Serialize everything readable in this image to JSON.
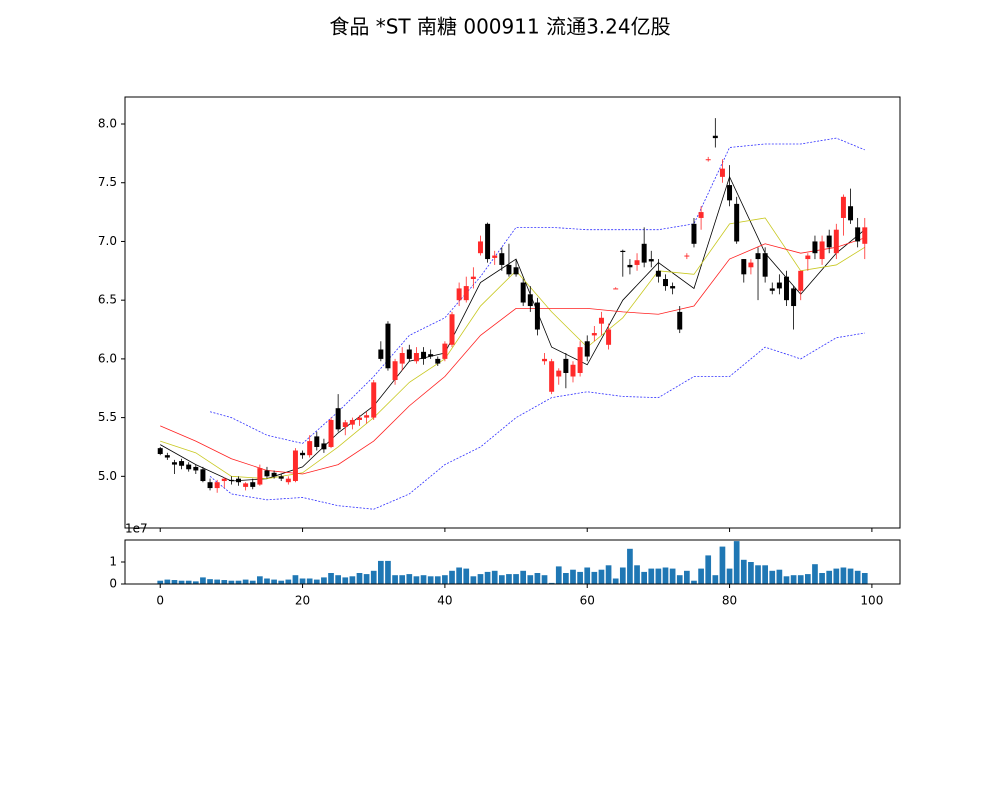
{
  "chart_data": {
    "type": "candlestick",
    "title": "食品 *ST 南糖 000911 流通3.24亿股",
    "xlim": [
      -4.95,
      103.95
    ],
    "xticks": [
      0,
      20,
      40,
      60,
      80,
      100
    ],
    "ylim": [
      4.56,
      8.23
    ],
    "yticks": [
      {
        "value": 5,
        "label": "5.0"
      },
      5.5,
      {
        "value": 6,
        "label": "6.0"
      },
      6.5,
      {
        "value": 7,
        "label": "7.0"
      },
      7.5,
      {
        "value": 8,
        "label": "8.0"
      }
    ],
    "up_color": "#ff2a2a",
    "down_color": "#000000",
    "candles": [
      [
        5.24,
        5.25,
        5.18,
        5.19
      ],
      [
        5.18,
        5.2,
        5.14,
        5.16
      ],
      [
        5.12,
        5.14,
        5.02,
        5.1
      ],
      [
        5.13,
        5.15,
        5.06,
        5.09
      ],
      [
        5.1,
        5.12,
        5.04,
        5.06
      ],
      [
        5.08,
        5.1,
        5.02,
        5.05
      ],
      [
        5.06,
        5.08,
        4.95,
        4.96
      ],
      [
        4.95,
        4.98,
        4.88,
        4.9
      ],
      [
        4.9,
        4.97,
        4.86,
        4.95
      ],
      [
        4.96,
        4.99,
        4.9,
        4.98
      ],
      [
        4.97,
        5.0,
        4.93,
        4.96
      ],
      [
        4.98,
        5.0,
        4.92,
        4.95
      ],
      [
        4.91,
        4.95,
        4.88,
        4.94
      ],
      [
        4.95,
        4.98,
        4.89,
        4.91
      ],
      [
        4.93,
        5.1,
        4.92,
        5.07
      ],
      [
        5.05,
        5.08,
        4.98,
        5.0
      ],
      [
        5.03,
        5.05,
        4.98,
        5.0
      ],
      [
        5.0,
        5.02,
        4.96,
        4.98
      ],
      [
        4.95,
        5.0,
        4.93,
        4.98
      ],
      [
        4.96,
        5.24,
        4.95,
        5.22
      ],
      [
        5.2,
        5.22,
        5.15,
        5.18
      ],
      [
        5.18,
        5.35,
        5.16,
        5.3
      ],
      [
        5.34,
        5.38,
        5.22,
        5.25
      ],
      [
        5.28,
        5.32,
        5.2,
        5.23
      ],
      [
        5.25,
        5.5,
        5.24,
        5.48
      ],
      [
        5.58,
        5.7,
        5.38,
        5.4
      ],
      [
        5.42,
        5.48,
        5.35,
        5.46
      ],
      [
        5.44,
        5.5,
        5.4,
        5.48
      ],
      [
        5.48,
        5.52,
        5.43,
        5.5
      ],
      [
        5.5,
        5.55,
        5.45,
        5.52
      ],
      [
        5.5,
        5.82,
        5.48,
        5.8
      ],
      [
        6.08,
        6.15,
        5.98,
        6.0
      ],
      [
        6.3,
        6.32,
        5.9,
        5.92
      ],
      [
        5.82,
        6.0,
        5.78,
        5.98
      ],
      [
        5.96,
        6.1,
        5.9,
        6.05
      ],
      [
        6.08,
        6.12,
        5.98,
        6.0
      ],
      [
        5.98,
        6.1,
        5.96,
        6.05
      ],
      [
        6.06,
        6.1,
        5.95,
        6.0
      ],
      [
        6.04,
        6.08,
        6.0,
        6.02
      ],
      [
        6.0,
        6.02,
        5.94,
        5.96
      ],
      [
        6.0,
        6.15,
        5.98,
        6.13
      ],
      [
        6.12,
        6.4,
        6.1,
        6.38
      ],
      [
        6.5,
        6.65,
        6.45,
        6.6
      ],
      [
        6.5,
        6.7,
        6.48,
        6.62
      ],
      [
        6.68,
        6.78,
        6.6,
        6.7
      ],
      [
        6.9,
        7.05,
        6.88,
        7.0
      ],
      [
        7.15,
        7.16,
        6.82,
        6.85
      ],
      [
        6.86,
        6.92,
        6.8,
        6.88
      ],
      [
        6.9,
        6.95,
        6.75,
        6.8
      ],
      [
        6.8,
        6.98,
        6.7,
        6.72
      ],
      [
        6.78,
        6.85,
        6.7,
        6.72
      ],
      [
        6.65,
        6.68,
        6.45,
        6.48
      ],
      [
        6.55,
        6.62,
        6.4,
        6.45
      ],
      [
        6.48,
        6.52,
        6.2,
        6.25
      ],
      [
        5.98,
        6.05,
        5.95,
        6.0
      ],
      [
        5.72,
        6.0,
        5.7,
        5.98
      ],
      [
        5.85,
        5.92,
        5.78,
        5.9
      ],
      [
        6.0,
        6.05,
        5.75,
        5.88
      ],
      [
        5.85,
        5.98,
        5.8,
        5.95
      ],
      [
        5.88,
        6.15,
        5.85,
        6.1
      ],
      [
        6.15,
        6.2,
        5.98,
        6.02
      ],
      [
        6.2,
        6.28,
        6.15,
        6.22
      ],
      [
        6.3,
        6.4,
        6.2,
        6.35
      ],
      [
        6.12,
        6.3,
        6.08,
        6.25
      ],
      [
        6.6,
        6.61,
        6.6,
        6.6
      ],
      [
        6.92,
        6.93,
        6.7,
        6.91
      ],
      [
        6.8,
        6.85,
        6.72,
        6.78
      ],
      [
        6.8,
        6.9,
        6.75,
        6.84
      ],
      [
        6.98,
        7.12,
        6.78,
        6.82
      ],
      [
        6.85,
        6.92,
        6.78,
        6.83
      ],
      [
        6.75,
        6.85,
        6.65,
        6.7
      ],
      [
        6.68,
        6.72,
        6.58,
        6.62
      ],
      [
        6.62,
        6.65,
        6.55,
        6.6
      ],
      [
        6.4,
        6.45,
        6.22,
        6.25
      ],
      [
        6.88,
        6.9,
        6.85,
        6.88
      ],
      [
        7.15,
        7.2,
        6.95,
        6.98
      ],
      [
        7.2,
        7.3,
        7.1,
        7.25
      ],
      [
        7.7,
        7.72,
        7.68,
        7.7
      ],
      [
        7.9,
        8.05,
        7.8,
        7.88
      ],
      [
        7.55,
        7.7,
        7.5,
        7.62
      ],
      [
        7.48,
        7.65,
        7.3,
        7.35
      ],
      [
        7.32,
        7.38,
        6.98,
        7.0
      ],
      [
        6.85,
        6.85,
        6.65,
        6.72
      ],
      [
        6.78,
        6.85,
        6.72,
        6.82
      ],
      [
        6.9,
        6.95,
        6.5,
        6.85
      ],
      [
        6.9,
        6.95,
        6.65,
        6.7
      ],
      [
        6.6,
        6.65,
        6.55,
        6.58
      ],
      [
        6.65,
        6.72,
        6.55,
        6.6
      ],
      [
        6.7,
        6.75,
        6.45,
        6.5
      ],
      [
        6.6,
        6.62,
        6.25,
        6.45
      ],
      [
        6.58,
        6.72,
        6.5,
        6.75
      ],
      [
        6.85,
        6.9,
        6.75,
        6.88
      ],
      [
        7.0,
        7.05,
        6.85,
        6.9
      ],
      [
        6.85,
        7.05,
        6.8,
        7.0
      ],
      [
        7.05,
        7.1,
        6.9,
        6.95
      ],
      [
        6.9,
        7.15,
        6.85,
        7.1
      ],
      [
        7.2,
        7.4,
        7.05,
        7.38
      ],
      [
        7.3,
        7.45,
        7.15,
        7.18
      ],
      [
        7.12,
        7.2,
        6.95,
        7.0
      ],
      [
        6.98,
        7.2,
        6.85,
        7.12
      ]
    ],
    "lines": [
      {
        "color": "#000000",
        "style": "solid",
        "x": [
          0,
          5,
          10,
          15,
          20,
          25,
          30,
          35,
          40,
          45,
          50,
          55,
          60,
          65,
          70,
          75,
          80,
          85,
          90,
          95,
          99
        ],
        "values": [
          5.27,
          5.1,
          4.96,
          4.98,
          5.08,
          5.37,
          5.6,
          5.98,
          6.05,
          6.65,
          6.85,
          6.1,
          5.95,
          6.5,
          6.82,
          6.6,
          7.55,
          6.9,
          6.55,
          6.9,
          7.1
        ]
      },
      {
        "color": "#c8c820",
        "style": "solid",
        "x": [
          0,
          5,
          10,
          15,
          20,
          25,
          30,
          35,
          40,
          45,
          50,
          55,
          60,
          65,
          70,
          75,
          80,
          85,
          90,
          95,
          99
        ],
        "values": [
          5.3,
          5.2,
          5.0,
          4.98,
          5.03,
          5.25,
          5.5,
          5.8,
          6.0,
          6.45,
          6.75,
          6.4,
          6.1,
          6.35,
          6.75,
          6.72,
          7.15,
          7.2,
          6.75,
          6.8,
          6.95
        ]
      },
      {
        "color": "#ff2020",
        "style": "solid",
        "x": [
          0,
          5,
          10,
          15,
          20,
          25,
          30,
          35,
          40,
          45,
          50,
          55,
          60,
          65,
          70,
          75,
          80,
          85,
          90,
          95,
          99
        ],
        "values": [
          5.43,
          5.3,
          5.15,
          5.05,
          5.02,
          5.1,
          5.3,
          5.6,
          5.85,
          6.2,
          6.43,
          6.43,
          6.43,
          6.4,
          6.38,
          6.45,
          6.85,
          6.98,
          6.9,
          6.95,
          7.03
        ]
      },
      {
        "color": "#3030ff",
        "style": "dotted",
        "x": [
          7,
          10,
          15,
          20,
          25,
          30,
          35,
          40,
          45,
          50,
          55,
          60,
          65,
          70,
          75,
          80,
          85,
          90,
          95,
          99
        ],
        "values": [
          5.55,
          5.5,
          5.35,
          5.28,
          5.55,
          5.85,
          6.2,
          6.35,
          6.7,
          7.12,
          7.12,
          7.1,
          7.1,
          7.1,
          7.15,
          7.8,
          7.83,
          7.83,
          7.88,
          7.78
        ]
      },
      {
        "color": "#3030ff",
        "style": "dotted",
        "x": [
          7,
          10,
          15,
          20,
          25,
          30,
          35,
          40,
          45,
          50,
          55,
          60,
          65,
          70,
          75,
          80,
          85,
          90,
          95,
          99
        ],
        "values": [
          5.0,
          4.85,
          4.8,
          4.82,
          4.75,
          4.72,
          4.85,
          5.1,
          5.25,
          5.5,
          5.67,
          5.72,
          5.68,
          5.67,
          5.85,
          5.85,
          6.1,
          6.0,
          6.18,
          6.22
        ]
      }
    ],
    "volume": {
      "color": "#1f77b4",
      "ylim": [
        0,
        2
      ],
      "yticks": [
        0,
        1
      ],
      "offset_label": "1e7",
      "values": [
        0.15,
        0.2,
        0.18,
        0.15,
        0.15,
        0.12,
        0.3,
        0.22,
        0.2,
        0.18,
        0.15,
        0.15,
        0.2,
        0.15,
        0.35,
        0.25,
        0.2,
        0.15,
        0.2,
        0.4,
        0.25,
        0.25,
        0.2,
        0.3,
        0.5,
        0.4,
        0.3,
        0.35,
        0.5,
        0.45,
        0.6,
        1.05,
        1.05,
        0.4,
        0.4,
        0.45,
        0.35,
        0.4,
        0.35,
        0.35,
        0.4,
        0.6,
        0.75,
        0.7,
        0.35,
        0.45,
        0.55,
        0.6,
        0.4,
        0.45,
        0.45,
        0.6,
        0.4,
        0.5,
        0.4,
        0.05,
        0.8,
        0.5,
        0.65,
        0.55,
        0.75,
        0.55,
        0.65,
        0.85,
        0.25,
        0.75,
        1.6,
        0.85,
        0.55,
        0.7,
        0.7,
        0.75,
        0.7,
        0.4,
        0.6,
        0.15,
        0.7,
        1.3,
        0.4,
        1.7,
        0.7,
        1.95,
        1.1,
        1.0,
        0.85,
        0.85,
        0.6,
        0.65,
        0.35,
        0.4,
        0.4,
        0.45,
        0.9,
        0.5,
        0.6,
        0.7,
        0.75,
        0.7,
        0.6,
        0.5
      ]
    }
  }
}
